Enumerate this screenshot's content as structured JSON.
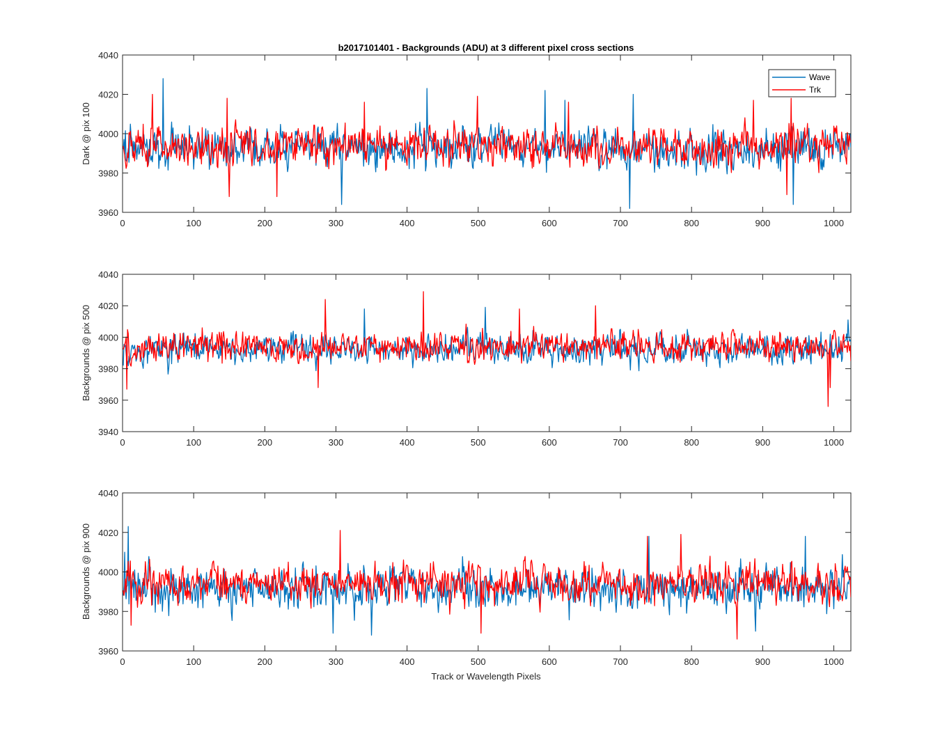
{
  "chart_data": [
    {
      "type": "line",
      "title": "b2017101401 - Backgrounds (ADU) at 3 different pixel cross sections",
      "xlabel": "",
      "ylabel": "Dark @ pix 100",
      "xlim": [
        0,
        1024
      ],
      "ylim": [
        3960,
        4040
      ],
      "xticks": [
        0,
        100,
        200,
        300,
        400,
        500,
        600,
        700,
        800,
        900,
        1000
      ],
      "yticks": [
        3960,
        3980,
        4000,
        4020,
        4040
      ],
      "legend": {
        "placement": "top-right",
        "entries": [
          "Wave",
          "Trk"
        ]
      },
      "series": [
        {
          "name": "Wave",
          "color": "#0072BD",
          "baseline": 3993,
          "amplitude": 7.5,
          "spikes": [
            [
              57,
              4028
            ],
            [
              308,
              3964
            ],
            [
              428,
              4023
            ],
            [
              594,
              4022
            ],
            [
              713,
              3962
            ],
            [
              718,
              4020
            ],
            [
              943,
              3964
            ],
            [
              622,
              4017
            ]
          ]
        },
        {
          "name": "Trk",
          "color": "#FF0000",
          "baseline": 3994,
          "amplitude": 7.5,
          "spikes": [
            [
              42,
              4020
            ],
            [
              147,
              4018
            ],
            [
              150,
              3968
            ],
            [
              217,
              3968
            ],
            [
              340,
              4016
            ],
            [
              499,
              4019
            ],
            [
              627,
              4016
            ],
            [
              887,
              4017
            ],
            [
              934,
              3969
            ],
            [
              940,
              4018
            ]
          ]
        }
      ]
    },
    {
      "type": "line",
      "title": "",
      "xlabel": "",
      "ylabel": "Backgrounds @ pix 500",
      "xlim": [
        0,
        1024
      ],
      "ylim": [
        3940,
        4040
      ],
      "xticks": [
        0,
        100,
        200,
        300,
        400,
        500,
        600,
        700,
        800,
        900,
        1000
      ],
      "yticks": [
        3940,
        3960,
        3980,
        4000,
        4020,
        4040
      ],
      "series": [
        {
          "name": "Wave",
          "color": "#0072BD",
          "baseline": 3992,
          "amplitude": 7,
          "spikes": [
            [
              340,
              4018
            ],
            [
              510,
              4019
            ],
            [
              1020,
              4011
            ]
          ]
        },
        {
          "name": "Trk",
          "color": "#FF0000",
          "baseline": 3994,
          "amplitude": 7,
          "spikes": [
            [
              6,
              3967
            ],
            [
              285,
              4024
            ],
            [
              275,
              3968
            ],
            [
              423,
              4029
            ],
            [
              558,
              4018
            ],
            [
              665,
              4020
            ],
            [
              992,
              3956
            ],
            [
              995,
              3968
            ]
          ]
        }
      ]
    },
    {
      "type": "line",
      "title": "",
      "xlabel": "Track or Wavelength Pixels",
      "ylabel": "Backgrounds @ pix 900",
      "xlim": [
        0,
        1024
      ],
      "ylim": [
        3960,
        4040
      ],
      "xticks": [
        0,
        100,
        200,
        300,
        400,
        500,
        600,
        700,
        800,
        900,
        1000
      ],
      "yticks": [
        3960,
        3980,
        4000,
        4020,
        4040
      ],
      "series": [
        {
          "name": "Wave",
          "color": "#0072BD",
          "baseline": 3992,
          "amplitude": 7.5,
          "spikes": [
            [
              8,
              4023
            ],
            [
              3,
              4010
            ],
            [
              296,
              3969
            ],
            [
              350,
              3968
            ],
            [
              740,
              4018
            ],
            [
              890,
              3970
            ],
            [
              960,
              4018
            ]
          ]
        },
        {
          "name": "Trk",
          "color": "#FF0000",
          "baseline": 3994,
          "amplitude": 7.5,
          "spikes": [
            [
              306,
              4021
            ],
            [
              12,
              3973
            ],
            [
              738,
              4018
            ],
            [
              785,
              4019
            ],
            [
              864,
              3966
            ],
            [
              504,
              3969
            ]
          ]
        }
      ]
    }
  ]
}
